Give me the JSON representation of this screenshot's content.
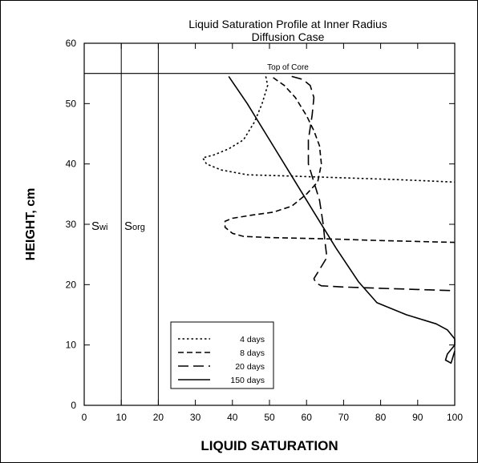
{
  "chart_data": {
    "type": "line",
    "title": "Liquid Saturation Profile at Inner Radius",
    "subtitle": "Diffusion Case",
    "xlabel": "LIQUID SATURATION",
    "ylabel": "HEIGHT, cm",
    "xlim": [
      0,
      100
    ],
    "ylim": [
      0,
      60
    ],
    "xticks": [
      "0",
      "10",
      "20",
      "30",
      "40",
      "50",
      "60",
      "70",
      "80",
      "90",
      "100"
    ],
    "yticks": [
      "0",
      "10",
      "20",
      "30",
      "40",
      "50",
      "60"
    ],
    "grid": false,
    "legend_position": "bottom-left",
    "annotations": {
      "top_of_core": {
        "label": "Top of Core",
        "y": 55
      },
      "swi": {
        "base": "S",
        "sub": "wi",
        "x": 10
      },
      "sorg": {
        "base": "S",
        "sub": "org",
        "x": 20
      }
    },
    "series": [
      {
        "name": "4 days",
        "style": "dotted",
        "points": [
          [
            49,
            54.5
          ],
          [
            49.5,
            53
          ],
          [
            48,
            50
          ],
          [
            46,
            47
          ],
          [
            43,
            44
          ],
          [
            39,
            42.5
          ],
          [
            35,
            41.5
          ],
          [
            32,
            41
          ],
          [
            33,
            40
          ],
          [
            37,
            39
          ],
          [
            44,
            38.2
          ],
          [
            55,
            38
          ],
          [
            70,
            37.7
          ],
          [
            85,
            37.4
          ],
          [
            100,
            37
          ]
        ]
      },
      {
        "name": "8 days",
        "style": "dashed",
        "points": [
          [
            51,
            54.3
          ],
          [
            54,
            53
          ],
          [
            57,
            51
          ],
          [
            60,
            48
          ],
          [
            62,
            45.5
          ],
          [
            63.5,
            43
          ],
          [
            64,
            40
          ],
          [
            63,
            37
          ],
          [
            60,
            35
          ],
          [
            56,
            33
          ],
          [
            51,
            32
          ],
          [
            45,
            31.5
          ],
          [
            40,
            31
          ],
          [
            38,
            30.5
          ],
          [
            38,
            29.5
          ],
          [
            40,
            28.5
          ],
          [
            43,
            28
          ],
          [
            50,
            27.8
          ],
          [
            65,
            27.6
          ],
          [
            80,
            27.3
          ],
          [
            100,
            27
          ]
        ]
      },
      {
        "name": "20 days",
        "style": "long-dash",
        "points": [
          [
            56,
            54.5
          ],
          [
            59,
            54
          ],
          [
            61,
            53
          ],
          [
            62,
            51
          ],
          [
            61.5,
            48
          ],
          [
            60.5,
            44
          ],
          [
            60.5,
            40
          ],
          [
            62,
            37
          ],
          [
            63.5,
            34
          ],
          [
            64.5,
            30
          ],
          [
            65,
            27
          ],
          [
            65.5,
            24.5
          ],
          [
            63,
            22
          ],
          [
            62,
            21
          ],
          [
            62.5,
            20.3
          ],
          [
            64,
            19.8
          ],
          [
            70,
            19.6
          ],
          [
            80,
            19.4
          ],
          [
            90,
            19.2
          ],
          [
            100,
            19
          ]
        ]
      },
      {
        "name": "150 days",
        "style": "solid",
        "points": [
          [
            39,
            54.5
          ],
          [
            44,
            50
          ],
          [
            50,
            44
          ],
          [
            56,
            38
          ],
          [
            62,
            32
          ],
          [
            68,
            26
          ],
          [
            74,
            20.5
          ],
          [
            79,
            17
          ],
          [
            87,
            15
          ],
          [
            95,
            13.5
          ],
          [
            98,
            12.5
          ],
          [
            100,
            11
          ],
          [
            100,
            10
          ],
          [
            98,
            8.5
          ],
          [
            97.5,
            7.5
          ],
          [
            99,
            7
          ],
          [
            100,
            9
          ]
        ]
      }
    ]
  }
}
